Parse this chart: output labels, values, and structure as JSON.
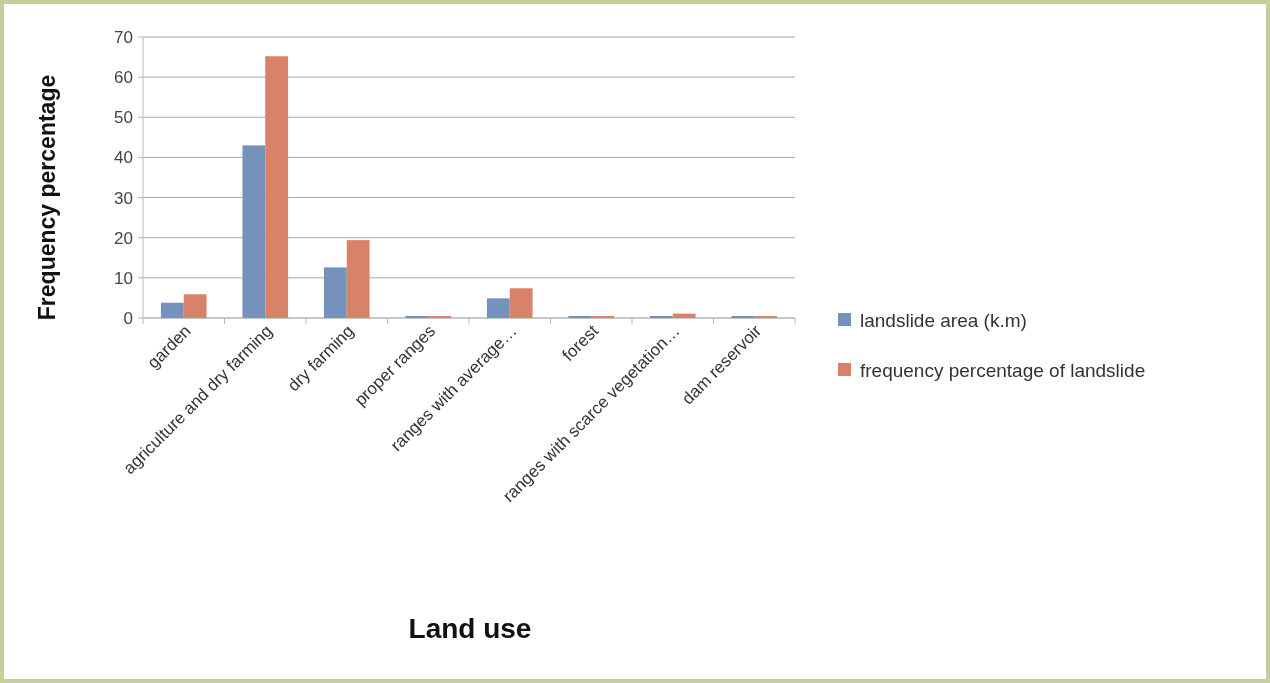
{
  "chart_data": {
    "type": "bar",
    "xlabel": "Land use",
    "ylabel": "Frequency percentage",
    "categories": [
      "garden",
      "agriculture and dry farming",
      "dry farming",
      "proper ranges",
      "ranges with average…",
      "forest",
      "ranges with scarce vegetation…",
      "dam reservoir"
    ],
    "series": [
      {
        "name": "landslide area (k.m)",
        "color": "#7592bc",
        "values": [
          3.8,
          43,
          12.6,
          0.5,
          4.9,
          0.5,
          0.5,
          0.5
        ]
      },
      {
        "name": "frequency percentage of landslide",
        "color": "#d9826a",
        "values": [
          5.9,
          65.2,
          19.4,
          0.5,
          7.4,
          0.5,
          1.1,
          0.5
        ]
      }
    ],
    "ylim": [
      0,
      70
    ],
    "yticks": [
      0,
      10,
      20,
      30,
      40,
      50,
      60,
      70
    ],
    "grid": "y",
    "legend": "right"
  }
}
